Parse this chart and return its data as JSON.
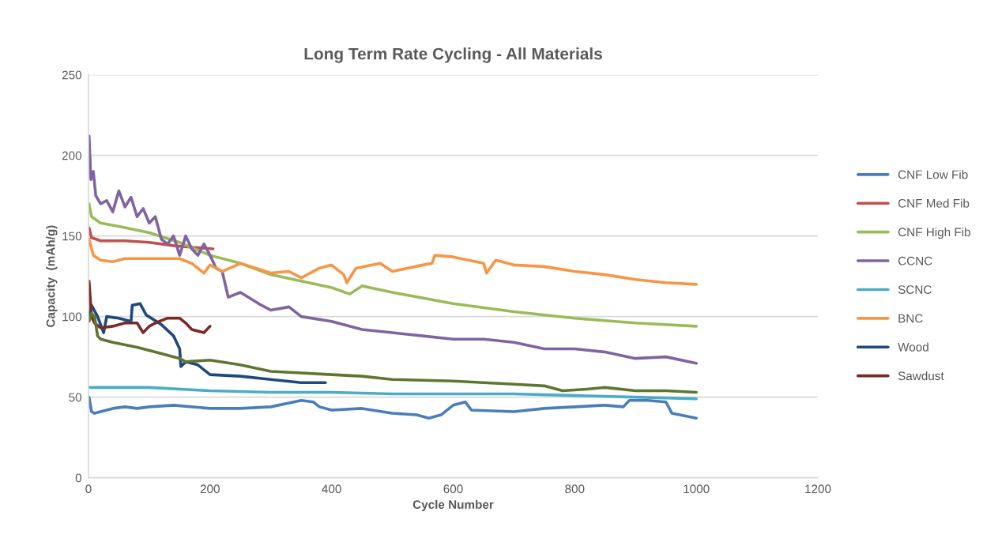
{
  "chart_data": {
    "type": "line",
    "title": "Long Term Rate Cycling - All Materials",
    "xlabel": "Cycle Number",
    "ylabel": "Capacity  (mAh/g)",
    "xlim": [
      0,
      1200
    ],
    "xticks": [
      0,
      200,
      400,
      600,
      800,
      1000,
      1200
    ],
    "ylim": [
      0,
      250
    ],
    "yticks": [
      0,
      50,
      100,
      150,
      200,
      250
    ],
    "grid": "y",
    "legend": "right",
    "line_style": "solid",
    "marker": "none",
    "series": [
      {
        "name": "CNF Low Fib",
        "color": "#4a7ebb",
        "x": [
          1,
          5,
          10,
          20,
          40,
          60,
          80,
          100,
          140,
          200,
          250,
          300,
          350,
          370,
          380,
          400,
          450,
          500,
          540,
          560,
          580,
          600,
          620,
          630,
          700,
          750,
          800,
          850,
          880,
          890,
          920,
          950,
          960,
          1000
        ],
        "values": [
          50,
          41,
          40,
          41,
          43,
          44,
          43,
          44,
          45,
          43,
          43,
          44,
          48,
          47,
          44,
          42,
          43,
          40,
          39,
          37,
          39,
          45,
          47,
          42,
          41,
          43,
          44,
          45,
          44,
          48,
          48,
          47,
          40,
          37
        ]
      },
      {
        "name": "CNF Med Fib",
        "color": "#c0504d",
        "x": [
          1,
          5,
          20,
          60,
          100,
          140,
          170,
          205
        ],
        "values": [
          155,
          149,
          147,
          147,
          146,
          144,
          143,
          142
        ]
      },
      {
        "name": "CNF High Fib",
        "color": "#9bbb59",
        "x": [
          1,
          5,
          20,
          50,
          100,
          150,
          200,
          250,
          300,
          350,
          400,
          430,
          450,
          500,
          600,
          700,
          800,
          900,
          1000
        ],
        "values": [
          170,
          162,
          158,
          156,
          152,
          146,
          138,
          133,
          126,
          122,
          118,
          114,
          119,
          115,
          108,
          103,
          99,
          96,
          94
        ]
      },
      {
        "name": "CCNC",
        "color": "#8064a2",
        "x": [
          1,
          4,
          8,
          12,
          20,
          30,
          40,
          50,
          60,
          70,
          80,
          90,
          100,
          110,
          120,
          130,
          140,
          150,
          160,
          170,
          180,
          190,
          200,
          210,
          220,
          230,
          250,
          280,
          300,
          330,
          350,
          400,
          450,
          500,
          550,
          600,
          650,
          700,
          750,
          800,
          850,
          900,
          950,
          1000
        ],
        "values": [
          212,
          185,
          190,
          175,
          170,
          172,
          165,
          178,
          168,
          174,
          162,
          167,
          158,
          162,
          148,
          145,
          150,
          138,
          150,
          142,
          138,
          145,
          138,
          130,
          128,
          112,
          115,
          108,
          104,
          106,
          100,
          97,
          92,
          90,
          88,
          86,
          86,
          84,
          80,
          80,
          78,
          74,
          75,
          71
        ]
      },
      {
        "name": "SCNC",
        "color": "#4bacc6",
        "x": [
          1,
          100,
          200,
          300,
          400,
          500,
          600,
          700,
          800,
          900,
          1000
        ],
        "values": [
          56,
          56,
          54,
          53,
          53,
          52,
          52,
          52,
          51,
          50,
          49
        ]
      },
      {
        "name": "BNC",
        "color": "#f79646",
        "x": [
          1,
          8,
          20,
          40,
          60,
          100,
          150,
          170,
          190,
          200,
          220,
          250,
          300,
          330,
          350,
          380,
          400,
          420,
          425,
          440,
          480,
          500,
          550,
          565,
          570,
          600,
          650,
          655,
          670,
          700,
          750,
          800,
          850,
          900,
          950,
          1000
        ],
        "values": [
          148,
          138,
          135,
          134,
          136,
          136,
          136,
          133,
          127,
          132,
          128,
          133,
          127,
          128,
          124,
          130,
          132,
          126,
          121,
          130,
          133,
          128,
          132,
          133,
          138,
          137,
          133,
          127,
          135,
          132,
          131,
          128,
          126,
          123,
          121,
          120
        ]
      },
      {
        "name": "Wood",
        "color": "#1f497d",
        "x": [
          1,
          5,
          15,
          25,
          30,
          50,
          70,
          72,
          85,
          95,
          120,
          140,
          150,
          152,
          160,
          180,
          200,
          250,
          300,
          350,
          390
        ],
        "values": [
          100,
          107,
          100,
          90,
          100,
          99,
          97,
          107,
          108,
          101,
          95,
          88,
          80,
          69,
          72,
          70,
          64,
          63,
          61,
          59,
          59
        ]
      },
      {
        "name": "Sawdust",
        "color": "#772c2a",
        "x": [
          1,
          5,
          10,
          20,
          40,
          60,
          80,
          90,
          100,
          110,
          130,
          150,
          160,
          170,
          190,
          200
        ],
        "values": [
          122,
          100,
          96,
          93,
          94,
          96,
          96,
          90,
          94,
          96,
          99,
          99,
          96,
          92,
          90,
          94
        ]
      },
      {
        "color": "#5f7530",
        "x": [
          1,
          5,
          10,
          15,
          20,
          40,
          80,
          120,
          150,
          160,
          200,
          250,
          300,
          350,
          400,
          450,
          500,
          600,
          700,
          750,
          780,
          820,
          850,
          900,
          950,
          1000
        ],
        "values": [
          97,
          102,
          100,
          88,
          86,
          84,
          81,
          77,
          74,
          72,
          73,
          70,
          66,
          65,
          64,
          63,
          61,
          60,
          58,
          57,
          54,
          55,
          56,
          54,
          54,
          53
        ]
      }
    ]
  }
}
